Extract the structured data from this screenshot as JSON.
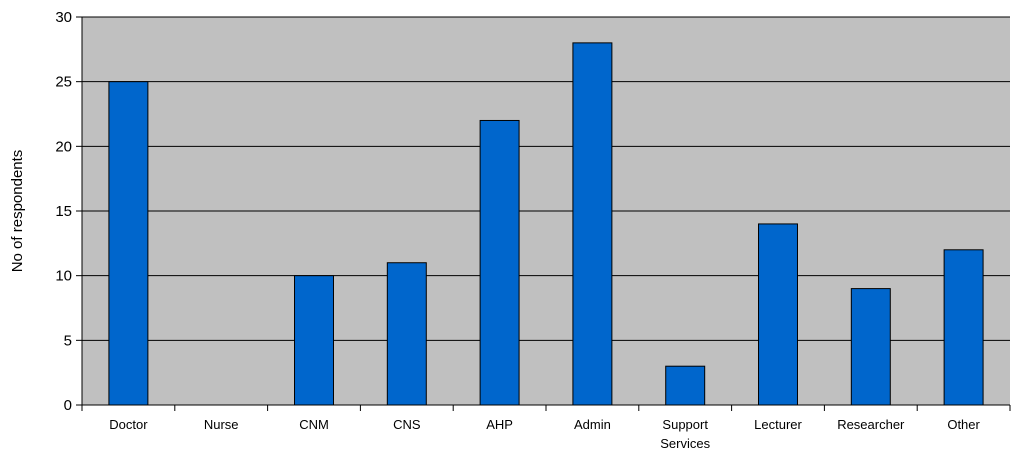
{
  "chart_data": {
    "type": "bar",
    "title": "",
    "xlabel": "",
    "ylabel": "No of respondents",
    "categories": [
      "Doctor",
      "Nurse",
      "CNM",
      "CNS",
      "AHP",
      "Admin",
      "Support Services",
      "Lecturer",
      "Researcher",
      "Other"
    ],
    "values": [
      25,
      0,
      10,
      11,
      22,
      28,
      3,
      14,
      9,
      12
    ],
    "ylim": [
      0,
      30
    ],
    "yticks": [
      0,
      5,
      10,
      15,
      20,
      25,
      30
    ],
    "grid": true,
    "legend": "none",
    "colors": {
      "bar": "#0066cc",
      "plot_background": "#c0c0c0",
      "gridline": "#000000"
    }
  }
}
